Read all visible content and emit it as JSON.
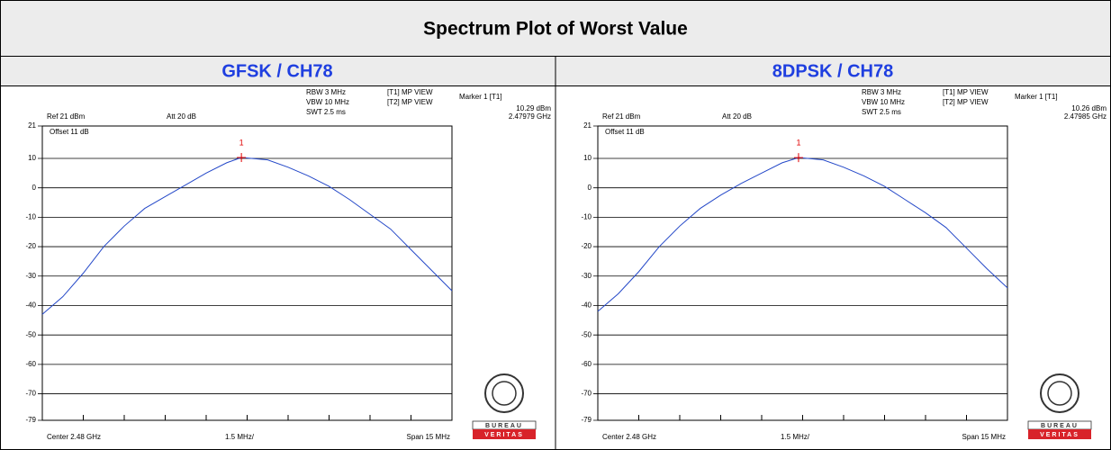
{
  "title": "Spectrum Plot of Worst Value",
  "chart_data": [
    {
      "type": "line",
      "subtitle": "GFSK / CH78",
      "annotations": [
        "RBW 3 MHz",
        "VBW 10 MHz",
        "SWT 2.5 ms",
        "[T1] MP VIEW",
        "[T2] MP VIEW",
        "Marker 1 [T1]",
        "Ref 21 dBm",
        "Att 20 dB",
        "Offset 11 dB"
      ],
      "x_labels": [
        "Center 2.48 GHz",
        "1.5 MHz/",
        "Span 15 MHz"
      ],
      "logo_text": [
        "BUREAU",
        "VERITAS"
      ],
      "marker": {
        "label": "1",
        "x": 2.47979,
        "value": 10.29,
        "value_label": "10.29 dBm",
        "x_label": "2.47979 GHz"
      },
      "xlim": [
        2.4725,
        2.4875
      ],
      "ylim": [
        -79,
        21
      ],
      "yticks": [
        21,
        10,
        0,
        -10,
        -20,
        -30,
        -40,
        -50,
        -60,
        -70,
        -79
      ],
      "x": [
        2.4725,
        2.47325,
        2.474,
        2.47475,
        2.4755,
        2.47625,
        2.477,
        2.47775,
        2.4785,
        2.47925,
        2.47979,
        2.48075,
        2.4815,
        2.48225,
        2.483,
        2.48375,
        2.4845,
        2.48525,
        2.486,
        2.48675,
        2.4875
      ],
      "series": [
        {
          "color": "#2448c8",
          "values": [
            -43,
            -37,
            -29,
            -20,
            -13,
            -7,
            -3,
            1,
            5,
            8.5,
            10.29,
            9.5,
            7,
            4,
            0.5,
            -4,
            -9,
            -14,
            -21,
            -28,
            -35
          ]
        }
      ]
    },
    {
      "type": "line",
      "subtitle": "8DPSK / CH78",
      "annotations": [
        "RBW 3 MHz",
        "VBW 10 MHz",
        "SWT 2.5 ms",
        "[T1] MP VIEW",
        "[T2] MP VIEW",
        "Marker 1 [T1]",
        "Ref 21 dBm",
        "Att 20 dB",
        "Offset 11 dB"
      ],
      "x_labels": [
        "Center 2.48 GHz",
        "1.5 MHz/",
        "Span 15 MHz"
      ],
      "logo_text": [
        "BUREAU",
        "VERITAS"
      ],
      "marker": {
        "label": "1",
        "x": 2.47985,
        "value": 10.26,
        "value_label": "10.26 dBm",
        "x_label": "2.47985 GHz"
      },
      "xlim": [
        2.4725,
        2.4875
      ],
      "ylim": [
        -79,
        21
      ],
      "yticks": [
        21,
        10,
        0,
        -10,
        -20,
        -30,
        -40,
        -50,
        -60,
        -70,
        -79
      ],
      "x": [
        2.4725,
        2.47325,
        2.474,
        2.47475,
        2.4755,
        2.47625,
        2.477,
        2.47775,
        2.4785,
        2.47925,
        2.47985,
        2.48075,
        2.4815,
        2.48225,
        2.483,
        2.48375,
        2.4845,
        2.48525,
        2.486,
        2.48675,
        2.4875
      ],
      "series": [
        {
          "color": "#2448c8",
          "values": [
            -42,
            -36,
            -28.5,
            -20,
            -13,
            -7,
            -2.5,
            1.5,
            5,
            8.5,
            10.26,
            9.5,
            7,
            4,
            0.5,
            -4,
            -8.5,
            -13.5,
            -20.5,
            -27.5,
            -34
          ]
        }
      ]
    }
  ]
}
